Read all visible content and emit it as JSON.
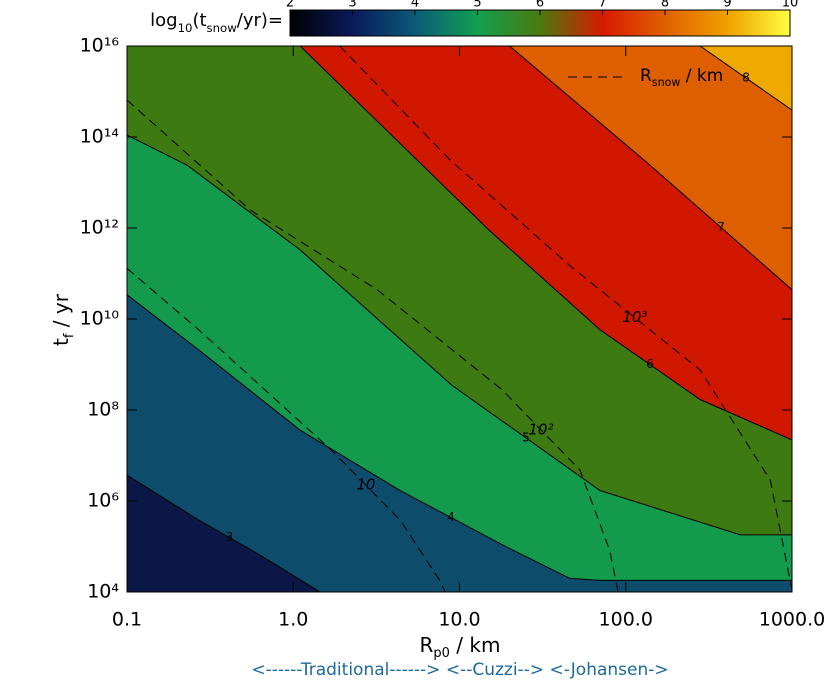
{
  "chart_data": {
    "type": "contour",
    "x_label": [
      {
        "text": "R"
      },
      {
        "text": "p0",
        "sub": true
      },
      {
        "text": " / km"
      }
    ],
    "y_label": [
      {
        "text": "t"
      },
      {
        "text": "f",
        "sub": true
      },
      {
        "text": " / yr"
      }
    ],
    "xlim": [
      0.1,
      1000
    ],
    "ylim": [
      10000,
      1e+16
    ],
    "log_x": true,
    "log_y": true,
    "xticks": [
      0.1,
      {
        "value": 1,
        "label": "1.0"
      },
      {
        "value": 10,
        "label": "10.0"
      },
      {
        "value": 100,
        "label": "100.0"
      },
      {
        "value": 1000,
        "label": "1000.0"
      }
    ],
    "yticks": [
      {
        "value": 10000,
        "label": "10⁴"
      },
      {
        "value": 1000000,
        "label": "10⁶"
      },
      {
        "value": 100000000.0,
        "label": "10⁸"
      },
      {
        "value": 10000000000.0,
        "label": "10¹⁰"
      },
      {
        "value": 1000000000000.0,
        "label": "10¹²"
      },
      {
        "value": 100000000000000.0,
        "label": "10¹⁴"
      },
      {
        "value": 1e+16,
        "label": "10¹⁶"
      }
    ],
    "base_color": "#0b1747",
    "contours": [
      {
        "level": 3,
        "color": "#0d4c6a",
        "x": [
          0.1,
          0.27,
          0.63,
          1.45
        ],
        "y": [
          3700000,
          380000,
          65000,
          10000
        ]
      },
      {
        "level": 4,
        "color": "#139a4c",
        "x": [
          0.1,
          0.27,
          1.1,
          4.4,
          18,
          46,
          70,
          1000
        ],
        "y": [
          34000000000,
          2100000000,
          36000000,
          1700000,
          110000,
          20000,
          18000,
          18000
        ]
      },
      {
        "level": 5,
        "color": "#3e7a12",
        "x": [
          0.1,
          0.23,
          1.1,
          9.0,
          70,
          490,
          1000
        ],
        "y": [
          110000000000000,
          24000000000000,
          330000000000,
          350000000,
          1700000,
          180000,
          180000
        ]
      },
      {
        "level": 6,
        "color": "#d01800",
        "x": [
          1.1,
          15,
          70,
          280,
          1000
        ],
        "y": [
          1e+16,
          910000000000,
          5800000000,
          170000000,
          22000000
        ]
      },
      {
        "level": 7,
        "color": "#de5f00",
        "x": [
          20,
          140,
          1000
        ],
        "y": [
          1e+16,
          24000000000000,
          44000000000
        ]
      },
      {
        "level": 8,
        "color": "#eeaa00",
        "x": [
          280,
          1000
        ],
        "y": [
          1e+16,
          390000000000000
        ]
      }
    ],
    "rsnow": [
      {
        "level": 10,
        "x": [
          0.1,
          0.27,
          1.7,
          4.4,
          7.6,
          8.2
        ],
        "y": [
          130000000000,
          5800000000,
          13000000,
          380000,
          18000,
          10000
        ]
      },
      {
        "level": {
          "value": 100,
          "label": "10²"
        },
        "x": [
          0.1,
          0.55,
          3.2,
          18,
          53,
          80,
          90
        ],
        "y": [
          650000000000000,
          2500000000000,
          44000000000,
          280000000,
          4800000,
          83000,
          10000
        ]
      },
      {
        "level": {
          "value": 1000,
          "label": "10³"
        },
        "x": [
          1.9,
          8.8,
          46,
          280,
          740,
          1000
        ],
        "y": [
          1e+16,
          31000000000000,
          150000000000,
          760000000,
          2900000,
          11000
        ]
      }
    ],
    "legend": [
      {
        "text": "R"
      },
      {
        "text": "snow",
        "sub": true
      },
      {
        "text": " / km"
      }
    ],
    "colorbar": {
      "label": [
        {
          "text": "log"
        },
        {
          "text": "10",
          "sub": true
        },
        {
          "text": "(t"
        },
        {
          "text": "snow",
          "sub": true
        },
        {
          "text": "/yr)="
        }
      ],
      "lim": [
        2,
        10
      ],
      "ticks": [
        2,
        3,
        4,
        5,
        6,
        7,
        8,
        9,
        10
      ],
      "colors": [
        "#000000",
        "#0a1a5a",
        "#0b5a78",
        "#12a050",
        "#4a7a10",
        "#d81a00",
        "#e06000",
        "#f0a000",
        "#ffff40"
      ]
    },
    "footnote": "<------Traditional------> <--Cuzzi--> <-Johansen->"
  }
}
